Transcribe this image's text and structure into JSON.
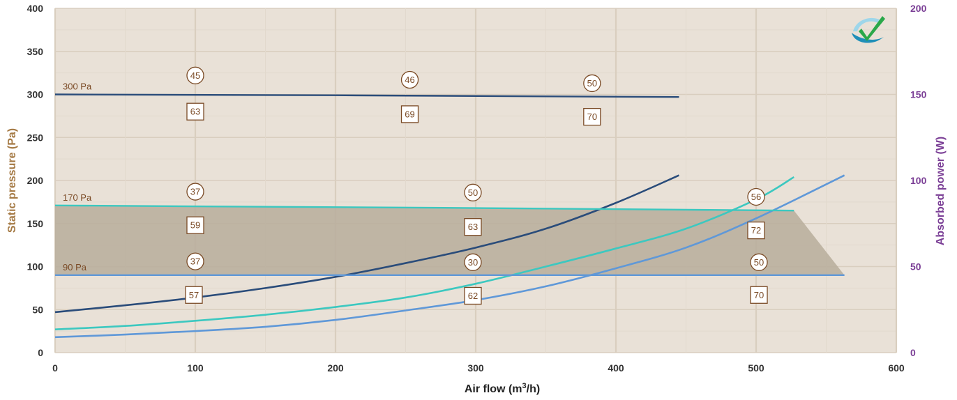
{
  "chart_data": {
    "type": "line",
    "title": "",
    "xlabel": "Air flow (m",
    "xlabel_sup": "3",
    "xlabel_tail": "/h)",
    "ylabel": "Static pressure (Pa)",
    "y2label": "Absorbed power (W)",
    "xlim": [
      0,
      600
    ],
    "ylim": [
      0,
      400
    ],
    "y2lim": [
      0,
      200
    ],
    "x_ticks": [
      "0",
      "100",
      "200",
      "300",
      "400",
      "500",
      "600"
    ],
    "y_ticks": [
      "0",
      "50",
      "100",
      "150",
      "200",
      "250",
      "300",
      "350",
      "400"
    ],
    "y2_ticks": [
      "0",
      "50",
      "100",
      "150",
      "200"
    ],
    "grid": true,
    "colors": {
      "plot_bg": "#e9e1d7",
      "grid_major": "#d9cebf",
      "grid_minor": "#e2d9cd",
      "working_area": "#b7ad9b",
      "curve_300": "#2a4c7a",
      "curve_170": "#3cc8c0",
      "curve_90": "#5f98d8",
      "marker": "#7a4a25"
    },
    "working_area": {
      "points": [
        [
          0,
          171
        ],
        [
          0,
          90
        ],
        [
          563,
          90
        ],
        [
          527,
          165
        ]
      ]
    },
    "pressure_curves": [
      {
        "label": "300 Pa",
        "color_key": "curve_300",
        "points": [
          [
            0,
            300
          ],
          [
            200,
            299
          ],
          [
            445,
            297
          ]
        ]
      },
      {
        "label": "170 Pa",
        "color_key": "curve_170",
        "points": [
          [
            0,
            171
          ],
          [
            300,
            168
          ],
          [
            527,
            165
          ]
        ]
      },
      {
        "label": "90 Pa",
        "color_key": "curve_90",
        "points": [
          [
            0,
            90
          ],
          [
            300,
            90
          ],
          [
            563,
            90
          ]
        ]
      }
    ],
    "power_curves": [
      {
        "color_key": "curve_300",
        "points": [
          [
            0,
            23.5
          ],
          [
            50,
            27.5
          ],
          [
            100,
            32
          ],
          [
            150,
            37.5
          ],
          [
            200,
            44
          ],
          [
            250,
            52
          ],
          [
            300,
            61
          ],
          [
            350,
            72
          ],
          [
            400,
            87
          ],
          [
            445,
            103
          ]
        ]
      },
      {
        "color_key": "curve_170",
        "points": [
          [
            0,
            13.5
          ],
          [
            50,
            15.5
          ],
          [
            100,
            18.5
          ],
          [
            150,
            22
          ],
          [
            200,
            26.5
          ],
          [
            250,
            32
          ],
          [
            300,
            40
          ],
          [
            350,
            50
          ],
          [
            400,
            60.5
          ],
          [
            450,
            72
          ],
          [
            500,
            89
          ],
          [
            527,
            102
          ]
        ]
      },
      {
        "color_key": "curve_90",
        "points": [
          [
            0,
            9
          ],
          [
            50,
            10.5
          ],
          [
            100,
            12.5
          ],
          [
            150,
            15
          ],
          [
            200,
            19
          ],
          [
            250,
            24.5
          ],
          [
            300,
            30.5
          ],
          [
            350,
            38.5
          ],
          [
            400,
            49
          ],
          [
            450,
            61
          ],
          [
            500,
            78
          ],
          [
            563,
            103
          ]
        ]
      }
    ],
    "markers": [
      {
        "shape": "circle",
        "text": "45",
        "x": 100,
        "y": 322
      },
      {
        "shape": "circle",
        "text": "46",
        "x": 253,
        "y": 317
      },
      {
        "shape": "circle",
        "text": "50",
        "x": 383,
        "y": 313
      },
      {
        "shape": "square",
        "text": "63",
        "x": 100,
        "y": 280
      },
      {
        "shape": "square",
        "text": "69",
        "x": 253,
        "y": 277
      },
      {
        "shape": "square",
        "text": "70",
        "x": 383,
        "y": 274
      },
      {
        "shape": "circle",
        "text": "37",
        "x": 100,
        "y": 187
      },
      {
        "shape": "circle",
        "text": "50",
        "x": 298,
        "y": 186
      },
      {
        "shape": "circle",
        "text": "56",
        "x": 500,
        "y": 181
      },
      {
        "shape": "square",
        "text": "59",
        "x": 100,
        "y": 148
      },
      {
        "shape": "square",
        "text": "63",
        "x": 298,
        "y": 146
      },
      {
        "shape": "square",
        "text": "72",
        "x": 500,
        "y": 142
      },
      {
        "shape": "circle",
        "text": "37",
        "x": 100,
        "y": 106
      },
      {
        "shape": "circle",
        "text": "30",
        "x": 298,
        "y": 105
      },
      {
        "shape": "circle",
        "text": "50",
        "x": 502,
        "y": 105
      },
      {
        "shape": "square",
        "text": "57",
        "x": 99,
        "y": 67
      },
      {
        "shape": "square",
        "text": "62",
        "x": 298,
        "y": 66
      },
      {
        "shape": "square",
        "text": "70",
        "x": 502,
        "y": 67
      }
    ]
  },
  "logo": {
    "icon": "checkmark-logo-icon"
  }
}
